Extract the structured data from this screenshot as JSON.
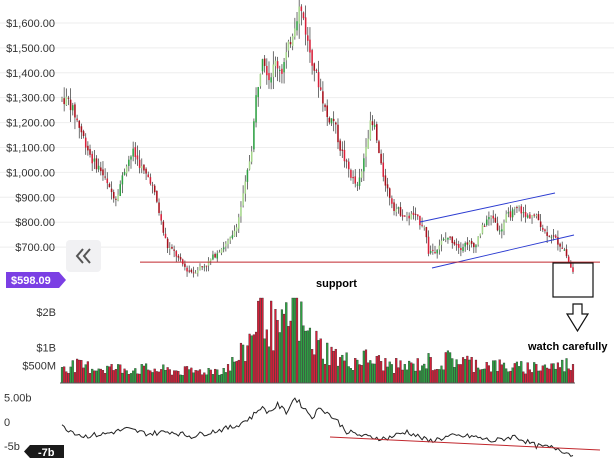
{
  "chart_data": {
    "type": "candlestick",
    "title": "",
    "price_axis": {
      "ticks": [
        "$700.00",
        "$800.00",
        "$900.00",
        "$1,000.00",
        "$1,100.00",
        "$1,200.00",
        "$1,300.00",
        "$1,400.00",
        "$1,500.00",
        "$1,600.00"
      ],
      "tick_values": [
        700,
        800,
        900,
        1000,
        1100,
        1200,
        1300,
        1400,
        1500,
        1600
      ],
      "range": [
        560,
        1660
      ]
    },
    "price_anchors": [
      [
        0,
        1295
      ],
      [
        3,
        1290
      ],
      [
        6,
        1230
      ],
      [
        10,
        1140
      ],
      [
        14,
        1050
      ],
      [
        18,
        1010
      ],
      [
        22,
        930
      ],
      [
        25,
        900
      ],
      [
        28,
        980
      ],
      [
        30,
        1040
      ],
      [
        33,
        1080
      ],
      [
        35,
        1050
      ],
      [
        38,
        1000
      ],
      [
        41,
        970
      ],
      [
        44,
        880
      ],
      [
        47,
        760
      ],
      [
        49,
        700
      ],
      [
        52,
        680
      ],
      [
        55,
        640
      ],
      [
        58,
        610
      ],
      [
        61,
        600
      ],
      [
        64,
        620
      ],
      [
        67,
        630
      ],
      [
        70,
        660
      ],
      [
        73,
        690
      ],
      [
        76,
        710
      ],
      [
        79,
        740
      ],
      [
        82,
        820
      ],
      [
        85,
        950
      ],
      [
        88,
        1100
      ],
      [
        90,
        1300
      ],
      [
        93,
        1480
      ],
      [
        96,
        1380
      ],
      [
        99,
        1440
      ],
      [
        102,
        1410
      ],
      [
        105,
        1500
      ],
      [
        108,
        1600
      ],
      [
        110,
        1660
      ],
      [
        112,
        1620
      ],
      [
        114,
        1520
      ],
      [
        117,
        1420
      ],
      [
        120,
        1330
      ],
      [
        123,
        1220
      ],
      [
        126,
        1210
      ],
      [
        129,
        1100
      ],
      [
        132,
        1030
      ],
      [
        135,
        970
      ],
      [
        137,
        940
      ],
      [
        139,
        1000
      ],
      [
        141,
        1120
      ],
      [
        143,
        1190
      ],
      [
        145,
        1180
      ],
      [
        148,
        1020
      ],
      [
        151,
        930
      ],
      [
        154,
        860
      ],
      [
        157,
        840
      ],
      [
        160,
        820
      ],
      [
        163,
        830
      ],
      [
        166,
        800
      ],
      [
        168,
        790
      ],
      [
        170,
        680
      ],
      [
        173,
        690
      ],
      [
        176,
        720
      ],
      [
        179,
        740
      ],
      [
        182,
        720
      ],
      [
        185,
        700
      ],
      [
        188,
        720
      ],
      [
        191,
        700
      ],
      [
        194,
        760
      ],
      [
        197,
        810
      ],
      [
        200,
        820
      ],
      [
        203,
        760
      ],
      [
        206,
        820
      ],
      [
        209,
        840
      ],
      [
        212,
        860
      ],
      [
        215,
        820
      ],
      [
        218,
        830
      ],
      [
        221,
        810
      ],
      [
        224,
        760
      ],
      [
        227,
        750
      ],
      [
        230,
        720
      ],
      [
        233,
        690
      ],
      [
        235,
        640
      ],
      [
        237,
        598
      ]
    ],
    "support_level": 640,
    "support_label": "support",
    "current_price_label": "$598.09",
    "annotation": "watch carefully",
    "volume_axis": {
      "ticks": [
        "$500M",
        "$1B",
        "$2B"
      ],
      "tick_values": [
        500,
        1000,
        2000
      ],
      "range": [
        0,
        2400
      ]
    },
    "volume_anchors": [
      [
        0,
        500
      ],
      [
        20,
        420
      ],
      [
        40,
        380
      ],
      [
        60,
        320
      ],
      [
        75,
        380
      ],
      [
        80,
        600
      ],
      [
        85,
        900
      ],
      [
        88,
        1400
      ],
      [
        90,
        1900
      ],
      [
        93,
        2400
      ],
      [
        96,
        1700
      ],
      [
        100,
        1400
      ],
      [
        103,
        1500
      ],
      [
        106,
        1900
      ],
      [
        108,
        2200
      ],
      [
        110,
        1800
      ],
      [
        114,
        1300
      ],
      [
        118,
        1100
      ],
      [
        122,
        900
      ],
      [
        126,
        800
      ],
      [
        130,
        650
      ],
      [
        134,
        600
      ],
      [
        140,
        700
      ],
      [
        146,
        600
      ],
      [
        152,
        500
      ],
      [
        160,
        450
      ],
      [
        170,
        600
      ],
      [
        175,
        500
      ],
      [
        180,
        700
      ],
      [
        190,
        560
      ],
      [
        200,
        500
      ],
      [
        210,
        420
      ],
      [
        220,
        460
      ],
      [
        230,
        480
      ],
      [
        237,
        550
      ]
    ],
    "oscillator_axis": {
      "ticks": [
        "5.00b",
        "0",
        "-5b"
      ],
      "tick_values": [
        5,
        0,
        -5
      ],
      "range": [
        -7.5,
        7
      ]
    },
    "oscillator_current_label": "-7b",
    "oscillator_anchors": [
      [
        0,
        -1
      ],
      [
        10,
        -3
      ],
      [
        20,
        -2.5
      ],
      [
        30,
        -1.5
      ],
      [
        40,
        -2.5
      ],
      [
        50,
        -2
      ],
      [
        60,
        -3
      ],
      [
        70,
        -2
      ],
      [
        80,
        -1
      ],
      [
        88,
        1
      ],
      [
        92,
        3
      ],
      [
        96,
        2
      ],
      [
        100,
        3.5
      ],
      [
        104,
        2
      ],
      [
        108,
        5
      ],
      [
        112,
        3
      ],
      [
        116,
        1
      ],
      [
        120,
        3
      ],
      [
        124,
        1.5
      ],
      [
        128,
        0
      ],
      [
        132,
        -2
      ],
      [
        136,
        -2.5
      ],
      [
        140,
        -3
      ],
      [
        150,
        -3.5
      ],
      [
        160,
        -2
      ],
      [
        170,
        -4
      ],
      [
        180,
        -3
      ],
      [
        190,
        -3
      ],
      [
        200,
        -4
      ],
      [
        210,
        -3
      ],
      [
        220,
        -5
      ],
      [
        230,
        -5.5
      ],
      [
        237,
        -7
      ]
    ]
  },
  "colors": {
    "up": "#2ea043",
    "up_light": "#a5d68a",
    "down": "#d8203a",
    "down_dark": "#a8101c",
    "support_line": "#c1272d",
    "channel": "#2b3bd1",
    "grid": "#eeeeee",
    "osc_line": "#222222",
    "badge": "#7b3fe4",
    "badge_dark": "#1a1a1a"
  },
  "icons": {
    "collapse": "double-chevron-left-icon",
    "arrow": "outline-arrow-down-icon"
  }
}
